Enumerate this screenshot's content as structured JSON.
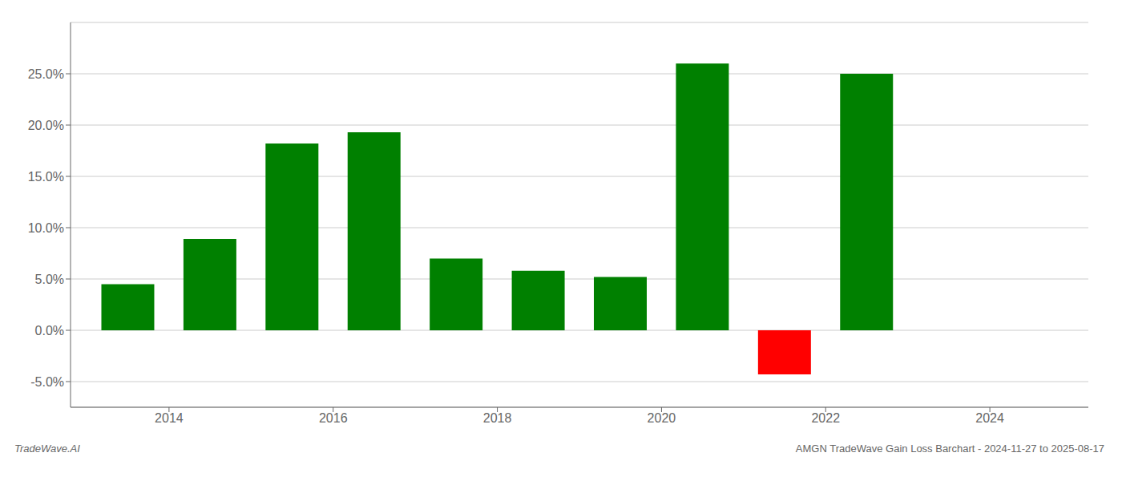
{
  "chart_data": {
    "type": "bar",
    "x": [
      2013.5,
      2014.5,
      2015.5,
      2016.5,
      2017.5,
      2018.5,
      2019.5,
      2020.5,
      2021.5,
      2022.5
    ],
    "values": [
      0.045,
      0.089,
      0.182,
      0.193,
      0.07,
      0.058,
      0.052,
      0.26,
      -0.043,
      0.25
    ],
    "colors": [
      "#008000",
      "#008000",
      "#008000",
      "#008000",
      "#008000",
      "#008000",
      "#008000",
      "#008000",
      "#ff0000",
      "#008000"
    ],
    "xlim": [
      2012.8,
      2025.2
    ],
    "xticks": [
      2014,
      2016,
      2018,
      2020,
      2022,
      2024
    ],
    "ylim": [
      -0.075,
      0.3
    ],
    "yticks": [
      {
        "value": -0.05,
        "label": "-5.0%"
      },
      {
        "value": 0.0,
        "label": "0.0%"
      },
      {
        "value": 0.05,
        "label": "5.0%"
      },
      {
        "value": 0.1,
        "label": "10.0%"
      },
      {
        "value": 0.15,
        "label": "15.0%"
      },
      {
        "value": 0.2,
        "label": "20.0%"
      },
      {
        "value": 0.25,
        "label": "25.0%"
      }
    ],
    "grid": true,
    "annotations": [
      "TradeWave.AI",
      "AMGN TradeWave Gain Loss Barchart - 2024-11-27 to 2025-08-17"
    ]
  }
}
